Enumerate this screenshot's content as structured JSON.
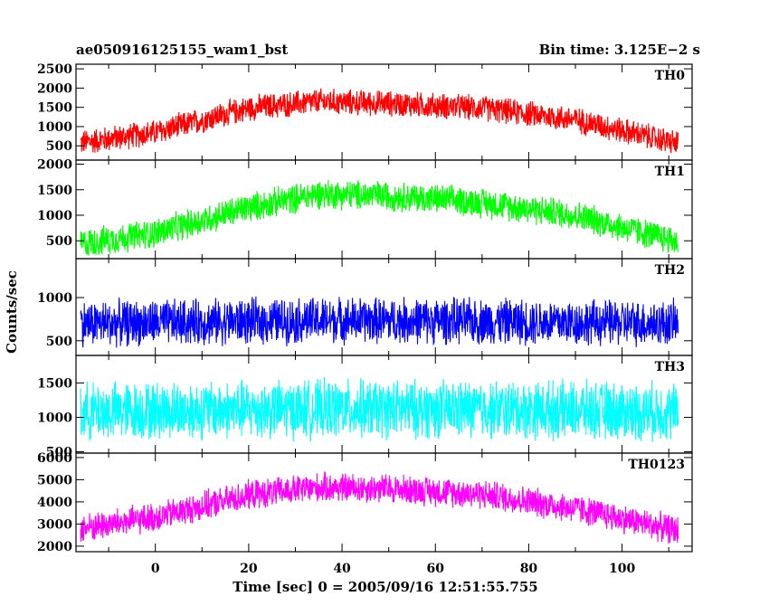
{
  "chart_data": {
    "type": "line",
    "title_left": "ae050916125155_wam1_bst",
    "title_right": "Bin time: 3.125E−2 s",
    "xlabel": "Time [sec] 0 = 2005/09/16 12:51:55.755",
    "ylabel": "Counts/sec",
    "xlim": [
      -17,
      115
    ],
    "x_ticks": [
      0,
      20,
      40,
      60,
      80,
      100
    ],
    "x_tick_labels": [
      "0",
      "20",
      "40",
      "60",
      "80",
      "100"
    ],
    "x_data_range": [
      -16,
      112
    ],
    "grid": false,
    "panels": [
      {
        "name": "TH0",
        "color": "#ff0000",
        "ylim": [
          130,
          2620
        ],
        "y_ticks": [
          500,
          1000,
          1500,
          2000,
          2500
        ],
        "y_tick_labels": [
          "500",
          "1000",
          "1500",
          "2000",
          "2500"
        ],
        "envelope": {
          "x": [
            -16,
            0,
            20,
            35,
            50,
            70,
            90,
            112
          ],
          "mean": [
            580,
            850,
            1480,
            1650,
            1600,
            1480,
            1180,
            560
          ]
        },
        "noise_amplitude": 380
      },
      {
        "name": "TH1",
        "color": "#00ff00",
        "ylim": [
          150,
          2080
        ],
        "y_ticks": [
          500,
          1000,
          1500,
          2000
        ],
        "y_tick_labels": [
          "500",
          "1000",
          "1500",
          "2000"
        ],
        "envelope": {
          "x": [
            -16,
            0,
            20,
            35,
            50,
            70,
            90,
            112
          ],
          "mean": [
            440,
            650,
            1150,
            1420,
            1380,
            1250,
            1000,
            480
          ]
        },
        "noise_amplitude": 330
      },
      {
        "name": "TH2",
        "color": "#0000ff",
        "ylim": [
          330,
          1450
        ],
        "y_ticks": [
          500,
          1000
        ],
        "y_tick_labels": [
          "500",
          "1000"
        ],
        "envelope": {
          "x": [
            -16,
            0,
            40,
            80,
            112
          ],
          "mean": [
            700,
            710,
            740,
            720,
            700
          ]
        },
        "noise_amplitude": 300
      },
      {
        "name": "TH3",
        "color": "#00ffff",
        "ylim": [
          480,
          1900
        ],
        "y_ticks": [
          500,
          1000,
          1500
        ],
        "y_tick_labels": [
          "500",
          "1000",
          "1500"
        ],
        "envelope": {
          "x": [
            -16,
            0,
            40,
            80,
            112
          ],
          "mean": [
            1080,
            1100,
            1120,
            1110,
            1080
          ]
        },
        "noise_amplitude": 480
      },
      {
        "name": "TH0123",
        "color": "#ff00ff",
        "ylim": [
          1750,
          6200
        ],
        "y_ticks": [
          2000,
          3000,
          4000,
          5000,
          6000
        ],
        "y_tick_labels": [
          "2000",
          "3000",
          "4000",
          "5000",
          "6000"
        ],
        "envelope": {
          "x": [
            -16,
            0,
            20,
            35,
            50,
            70,
            90,
            112
          ],
          "mean": [
            2800,
            3300,
            4300,
            4650,
            4600,
            4350,
            3700,
            2700
          ]
        },
        "noise_amplitude": 750
      }
    ]
  }
}
